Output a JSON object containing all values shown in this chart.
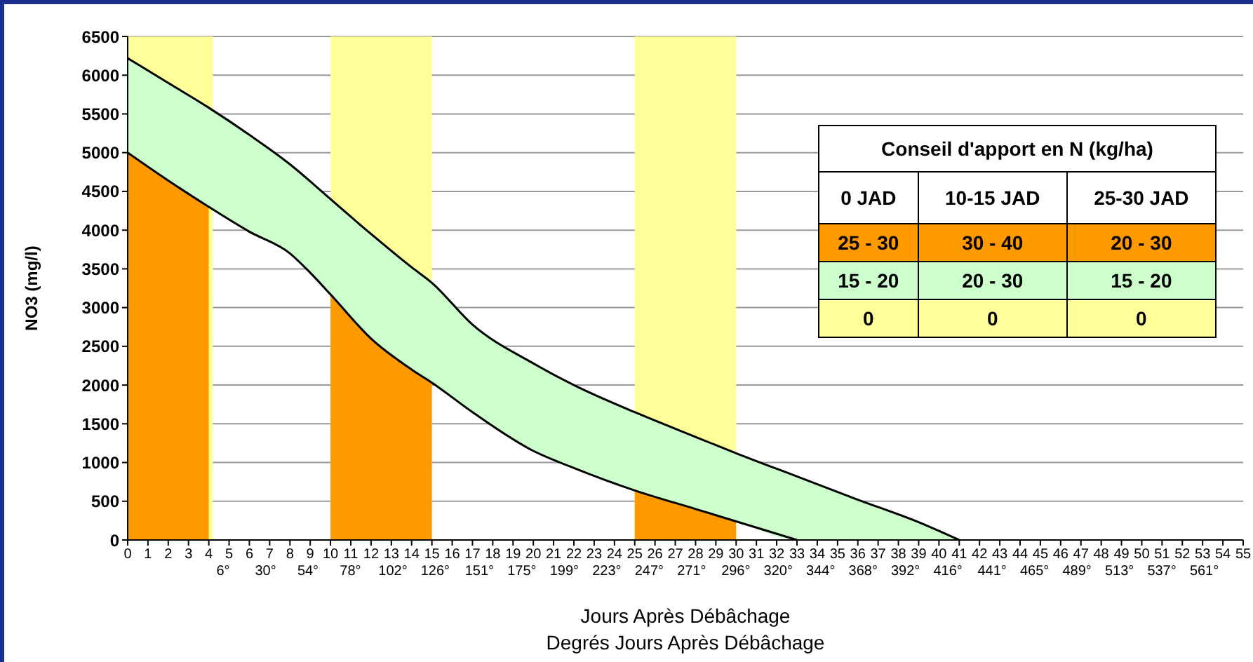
{
  "chart_data": {
    "type": "line",
    "xlabel": "Jours Après Débâchage",
    "x2label": "Degrés Jours Après Débâchage",
    "ylabel": "NO3 (mg/l)",
    "x": [
      0,
      2,
      4,
      6,
      8,
      9,
      10,
      12,
      14,
      15,
      17,
      20,
      22,
      25,
      28,
      30,
      33,
      36,
      39,
      41
    ],
    "series": [
      {
        "type": "line",
        "color": "#000000",
        "values": [
          6220,
          5900,
          5580,
          5230,
          4850,
          4630,
          4400,
          3950,
          3520,
          3320,
          2780,
          2280,
          2000,
          1650,
          1330,
          1120,
          820,
          520,
          230,
          0
        ],
        "lower": [
          5000,
          4640,
          4300,
          3980,
          3700,
          3450,
          3170,
          2600,
          2200,
          2030,
          1650,
          1150,
          930,
          640,
          400,
          240,
          0,
          0,
          0,
          0
        ],
        "upper": [
          6220,
          5900,
          5580,
          5230,
          4850,
          4630,
          4400,
          3950,
          3520,
          3320,
          2780,
          2280,
          2000,
          1650,
          1330,
          1120,
          820,
          520,
          230,
          0
        ]
      },
      {
        "type": "line",
        "color": "#000000",
        "values": [
          5000,
          4640,
          4300,
          3980,
          3700,
          3450,
          3170,
          2600,
          2200,
          2030,
          1650,
          1150,
          930,
          640,
          400,
          240,
          0,
          null,
          null,
          null
        ]
      },
      {
        "type": "area",
        "color": "#ff9900",
        "values": [
          5000,
          4640,
          4300,
          null,
          null,
          null,
          3170,
          2600,
          2200,
          2030,
          null,
          null,
          null,
          640,
          400,
          240,
          null,
          null,
          null,
          null
        ]
      }
    ],
    "bands": [
      {
        "axis": "x",
        "from": 0,
        "to": 4.2,
        "color": "#ffff99"
      },
      {
        "axis": "x",
        "from": 10,
        "to": 15,
        "color": "#ffff99"
      },
      {
        "axis": "x",
        "from": 25,
        "to": 30,
        "color": "#ffff99"
      }
    ],
    "xlim": [
      0,
      55
    ],
    "xticks": [
      0,
      1,
      2,
      3,
      4,
      5,
      6,
      7,
      8,
      9,
      10,
      11,
      12,
      13,
      14,
      15,
      16,
      17,
      18,
      19,
      20,
      21,
      22,
      23,
      24,
      25,
      26,
      27,
      28,
      29,
      30,
      31,
      32,
      33,
      34,
      35,
      36,
      37,
      38,
      39,
      40,
      41,
      42,
      43,
      44,
      45,
      46,
      47,
      48,
      49,
      50,
      51,
      52,
      53,
      54,
      55
    ],
    "x2lim": [
      -48,
      583
    ],
    "x2ticks": [
      {
        "value": 6,
        "label": "6°"
      },
      {
        "value": 30,
        "label": "30°"
      },
      {
        "value": 54,
        "label": "54°"
      },
      {
        "value": 78,
        "label": "78°"
      },
      {
        "value": 102,
        "label": "102°"
      },
      {
        "value": 126,
        "label": "126°"
      },
      {
        "value": 151,
        "label": "151°"
      },
      {
        "value": 175,
        "label": "175°"
      },
      {
        "value": 199,
        "label": "199°"
      },
      {
        "value": 223,
        "label": "223°"
      },
      {
        "value": 247,
        "label": "247°"
      },
      {
        "value": 271,
        "label": "271°"
      },
      {
        "value": 296,
        "label": "296°"
      },
      {
        "value": 320,
        "label": "320°"
      },
      {
        "value": 344,
        "label": "344°"
      },
      {
        "value": 368,
        "label": "368°"
      },
      {
        "value": 392,
        "label": "392°"
      },
      {
        "value": 416,
        "label": "416°"
      },
      {
        "value": 441,
        "label": "441°"
      },
      {
        "value": 465,
        "label": "465°"
      },
      {
        "value": 489,
        "label": "489°"
      },
      {
        "value": 513,
        "label": "513°"
      },
      {
        "value": 537,
        "label": "537°"
      },
      {
        "value": 561,
        "label": "561°"
      }
    ],
    "ylim": [
      0,
      6500
    ],
    "yticks": [
      0,
      500,
      1000,
      1500,
      2000,
      2500,
      3000,
      3500,
      4000,
      4500,
      5000,
      5500,
      6000,
      6500
    ],
    "grid": "y",
    "legend": false,
    "annotations": [
      "Conseil d'apport en N (kg/ha)",
      "0 JAD",
      "10-15 JAD",
      "25-30 JAD",
      "25 - 30",
      "30 - 40",
      "20 - 30",
      "15 - 20",
      "20 - 30",
      "15 - 20",
      "0",
      "0",
      "0"
    ]
  }
}
